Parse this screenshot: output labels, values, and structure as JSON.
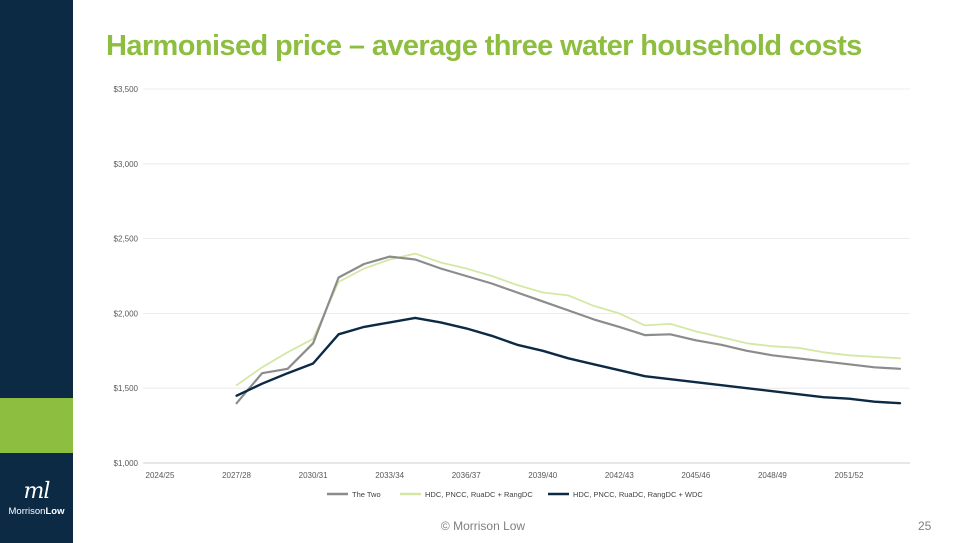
{
  "slide": {
    "title": "Harmonised price – average three water household costs",
    "footer": "© Morrison Low",
    "page_number": "25",
    "logo": {
      "mark": "ml",
      "text_light": "Morrison",
      "text_bold": "Low"
    },
    "colors": {
      "sidebar": "#0d2a45",
      "accent": "#8ebe3f",
      "title": "#8ebe3f"
    }
  },
  "chart_data": {
    "type": "line",
    "title": "",
    "xlabel": "",
    "ylabel": "",
    "ylim": [
      1000,
      3500
    ],
    "y_ticks": [
      1000,
      1500,
      2000,
      2500,
      3000,
      3500
    ],
    "y_tick_labels": [
      "$1,000",
      "$1,500",
      "$2,000",
      "$2,500",
      "$3,000",
      "$3,500"
    ],
    "x": [
      "2024/25",
      "2025/26",
      "2026/27",
      "2027/28",
      "2028/29",
      "2029/30",
      "2030/31",
      "2031/32",
      "2032/33",
      "2033/34",
      "2034/35",
      "2035/36",
      "2036/37",
      "2037/38",
      "2038/39",
      "2039/40",
      "2040/41",
      "2041/42",
      "2042/43",
      "2043/44",
      "2044/45",
      "2045/46",
      "2046/47",
      "2047/48",
      "2048/49",
      "2049/50",
      "2050/51",
      "2051/52",
      "2052/53",
      "2053/54"
    ],
    "x_tick_labels": [
      "2024/25",
      "2027/28",
      "2030/31",
      "2033/34",
      "2036/37",
      "2039/40",
      "2042/43",
      "2045/46",
      "2048/49",
      "2051/52"
    ],
    "grid": true,
    "legend_position": "bottom",
    "series": [
      {
        "name": "The Two",
        "color": "#8c8c8c",
        "values": [
          null,
          null,
          null,
          1400,
          1600,
          1630,
          1800,
          2240,
          2330,
          2380,
          2360,
          2300,
          2250,
          2200,
          2140,
          2080,
          2020,
          1960,
          1910,
          1855,
          1860,
          1820,
          1790,
          1750,
          1720,
          1700,
          1680,
          1660,
          1640,
          1630
        ]
      },
      {
        "name": "HDC, PNCC, RuaDC + RangDC",
        "color": "#d4e8a6",
        "values": [
          null,
          null,
          null,
          1520,
          1640,
          1740,
          1830,
          2210,
          2300,
          2360,
          2400,
          2340,
          2300,
          2250,
          2190,
          2140,
          2120,
          2050,
          2000,
          1920,
          1930,
          1880,
          1840,
          1800,
          1780,
          1770,
          1740,
          1720,
          1710,
          1700
        ]
      },
      {
        "name": "HDC, PNCC, RuaDC, RangDC + WDC",
        "color": "#0d2a45",
        "values": [
          null,
          null,
          null,
          1450,
          1530,
          1600,
          1665,
          1860,
          1910,
          1940,
          1970,
          1940,
          1900,
          1850,
          1790,
          1750,
          1700,
          1660,
          1620,
          1580,
          1560,
          1540,
          1520,
          1500,
          1480,
          1460,
          1440,
          1430,
          1410,
          1400
        ]
      }
    ]
  }
}
